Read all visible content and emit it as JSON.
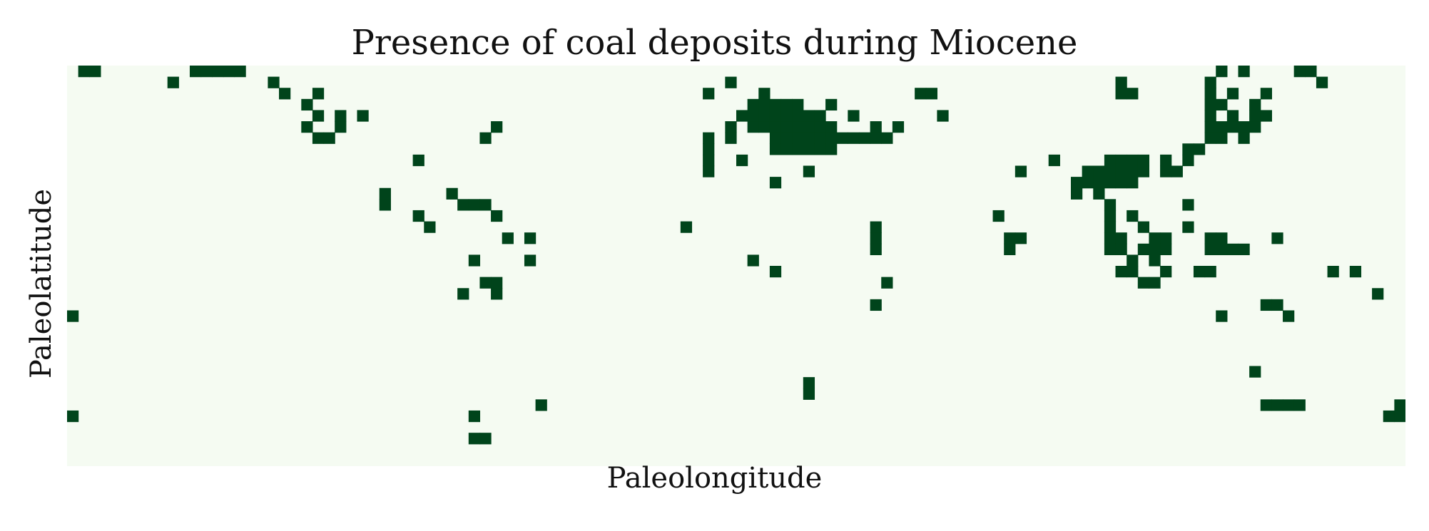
{
  "chart_data": {
    "type": "heatmap",
    "title": "Presence of coal deposits during Miocene",
    "xlabel": "Paleolongitude",
    "ylabel": "Paleolatitude",
    "grid": false,
    "legend": "none",
    "n_cols": 120,
    "n_rows": 36,
    "colors": {
      "absent": "#f5fbf2",
      "present": "#00441b"
    },
    "present_cells": [
      [
        0,
        1
      ],
      [
        0,
        2
      ],
      [
        0,
        11
      ],
      [
        0,
        12
      ],
      [
        0,
        13
      ],
      [
        0,
        14
      ],
      [
        0,
        15
      ],
      [
        0,
        103
      ],
      [
        0,
        105
      ],
      [
        0,
        110
      ],
      [
        0,
        111
      ],
      [
        1,
        9
      ],
      [
        1,
        18
      ],
      [
        1,
        59
      ],
      [
        1,
        94
      ],
      [
        1,
        102
      ],
      [
        1,
        112
      ],
      [
        2,
        19
      ],
      [
        2,
        22
      ],
      [
        2,
        57
      ],
      [
        2,
        62
      ],
      [
        2,
        76
      ],
      [
        2,
        77
      ],
      [
        2,
        94
      ],
      [
        2,
        95
      ],
      [
        2,
        102
      ],
      [
        2,
        104
      ],
      [
        2,
        107
      ],
      [
        3,
        21
      ],
      [
        3,
        61
      ],
      [
        3,
        62
      ],
      [
        3,
        63
      ],
      [
        3,
        64
      ],
      [
        3,
        65
      ],
      [
        3,
        68
      ],
      [
        3,
        102
      ],
      [
        3,
        103
      ],
      [
        3,
        106
      ],
      [
        4,
        22
      ],
      [
        4,
        24
      ],
      [
        4,
        26
      ],
      [
        4,
        60
      ],
      [
        4,
        61
      ],
      [
        4,
        62
      ],
      [
        4,
        63
      ],
      [
        4,
        64
      ],
      [
        4,
        65
      ],
      [
        4,
        66
      ],
      [
        4,
        67
      ],
      [
        4,
        70
      ],
      [
        4,
        78
      ],
      [
        4,
        102
      ],
      [
        4,
        104
      ],
      [
        4,
        106
      ],
      [
        4,
        107
      ],
      [
        5,
        21
      ],
      [
        5,
        24
      ],
      [
        5,
        38
      ],
      [
        5,
        59
      ],
      [
        5,
        61
      ],
      [
        5,
        62
      ],
      [
        5,
        63
      ],
      [
        5,
        64
      ],
      [
        5,
        65
      ],
      [
        5,
        66
      ],
      [
        5,
        67
      ],
      [
        5,
        68
      ],
      [
        5,
        72
      ],
      [
        5,
        74
      ],
      [
        5,
        102
      ],
      [
        5,
        103
      ],
      [
        5,
        104
      ],
      [
        5,
        105
      ],
      [
        5,
        106
      ],
      [
        6,
        22
      ],
      [
        6,
        23
      ],
      [
        6,
        37
      ],
      [
        6,
        57
      ],
      [
        6,
        59
      ],
      [
        6,
        63
      ],
      [
        6,
        64
      ],
      [
        6,
        65
      ],
      [
        6,
        66
      ],
      [
        6,
        67
      ],
      [
        6,
        68
      ],
      [
        6,
        69
      ],
      [
        6,
        70
      ],
      [
        6,
        71
      ],
      [
        6,
        72
      ],
      [
        6,
        73
      ],
      [
        6,
        102
      ],
      [
        6,
        103
      ],
      [
        6,
        105
      ],
      [
        7,
        57
      ],
      [
        7,
        63
      ],
      [
        7,
        64
      ],
      [
        7,
        65
      ],
      [
        7,
        66
      ],
      [
        7,
        67
      ],
      [
        7,
        68
      ],
      [
        7,
        100
      ],
      [
        7,
        101
      ],
      [
        8,
        31
      ],
      [
        8,
        57
      ],
      [
        8,
        60
      ],
      [
        8,
        88
      ],
      [
        8,
        93
      ],
      [
        8,
        94
      ],
      [
        8,
        95
      ],
      [
        8,
        96
      ],
      [
        8,
        98
      ],
      [
        8,
        100
      ],
      [
        9,
        57
      ],
      [
        9,
        66
      ],
      [
        9,
        85
      ],
      [
        9,
        91
      ],
      [
        9,
        92
      ],
      [
        9,
        93
      ],
      [
        9,
        94
      ],
      [
        9,
        95
      ],
      [
        9,
        96
      ],
      [
        9,
        98
      ],
      [
        9,
        99
      ],
      [
        10,
        63
      ],
      [
        10,
        90
      ],
      [
        10,
        91
      ],
      [
        10,
        92
      ],
      [
        10,
        93
      ],
      [
        10,
        94
      ],
      [
        10,
        95
      ],
      [
        11,
        28
      ],
      [
        11,
        34
      ],
      [
        11,
        90
      ],
      [
        11,
        92
      ],
      [
        12,
        28
      ],
      [
        12,
        35
      ],
      [
        12,
        36
      ],
      [
        12,
        37
      ],
      [
        12,
        93
      ],
      [
        12,
        100
      ],
      [
        13,
        31
      ],
      [
        13,
        38
      ],
      [
        13,
        83
      ],
      [
        13,
        93
      ],
      [
        13,
        95
      ],
      [
        14,
        32
      ],
      [
        14,
        55
      ],
      [
        14,
        72
      ],
      [
        14,
        93
      ],
      [
        14,
        96
      ],
      [
        14,
        100
      ],
      [
        15,
        39
      ],
      [
        15,
        41
      ],
      [
        15,
        72
      ],
      [
        15,
        84
      ],
      [
        15,
        85
      ],
      [
        15,
        93
      ],
      [
        15,
        94
      ],
      [
        15,
        97
      ],
      [
        15,
        98
      ],
      [
        15,
        102
      ],
      [
        15,
        103
      ],
      [
        15,
        108
      ],
      [
        16,
        72
      ],
      [
        16,
        84
      ],
      [
        16,
        93
      ],
      [
        16,
        94
      ],
      [
        16,
        96
      ],
      [
        16,
        97
      ],
      [
        16,
        98
      ],
      [
        16,
        102
      ],
      [
        16,
        103
      ],
      [
        16,
        104
      ],
      [
        16,
        105
      ],
      [
        17,
        36
      ],
      [
        17,
        41
      ],
      [
        17,
        61
      ],
      [
        17,
        95
      ],
      [
        17,
        97
      ],
      [
        18,
        63
      ],
      [
        18,
        94
      ],
      [
        18,
        95
      ],
      [
        18,
        98
      ],
      [
        18,
        101
      ],
      [
        18,
        102
      ],
      [
        18,
        113
      ],
      [
        18,
        115
      ],
      [
        19,
        37
      ],
      [
        19,
        38
      ],
      [
        19,
        73
      ],
      [
        19,
        96
      ],
      [
        19,
        97
      ],
      [
        20,
        35
      ],
      [
        20,
        38
      ],
      [
        20,
        117
      ],
      [
        21,
        72
      ],
      [
        21,
        107
      ],
      [
        21,
        108
      ],
      [
        22,
        0
      ],
      [
        22,
        103
      ],
      [
        22,
        109
      ],
      [
        27,
        106
      ],
      [
        28,
        66
      ],
      [
        29,
        66
      ],
      [
        30,
        42
      ],
      [
        30,
        107
      ],
      [
        30,
        108
      ],
      [
        30,
        109
      ],
      [
        30,
        110
      ],
      [
        30,
        119
      ],
      [
        31,
        0
      ],
      [
        31,
        36
      ],
      [
        31,
        118
      ],
      [
        31,
        119
      ],
      [
        33,
        36
      ],
      [
        33,
        37
      ]
    ]
  }
}
